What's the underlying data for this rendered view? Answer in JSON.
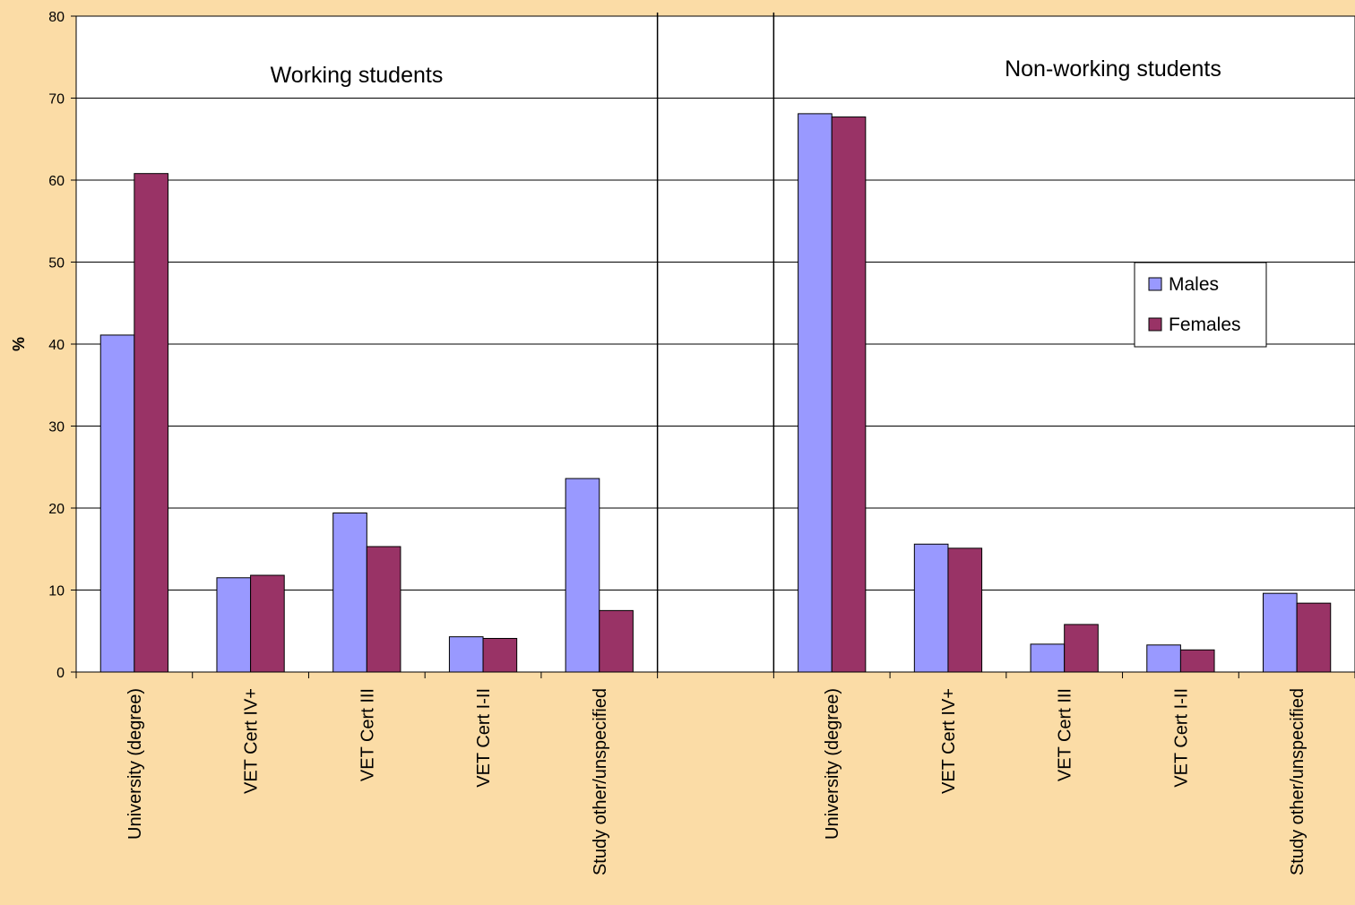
{
  "chart_data": {
    "type": "bar",
    "ylabel": "%",
    "ylim": [
      0,
      80
    ],
    "yticks": [
      0,
      10,
      20,
      30,
      40,
      50,
      60,
      70,
      80
    ],
    "grid": true,
    "legend_position": "right",
    "categories": [
      "University (degree)",
      "VET Cert IV+",
      "VET Cert III",
      "VET Cert I-II",
      "Study other/unspecified",
      "",
      "University (degree)",
      "VET Cert IV+",
      "VET Cert III",
      "VET Cert I-II",
      "Study other/unspecified"
    ],
    "series": [
      {
        "name": "Males",
        "color": "#9999ff",
        "values": [
          41.1,
          11.5,
          19.4,
          4.3,
          23.6,
          null,
          68.1,
          15.6,
          3.4,
          3.3,
          9.6
        ]
      },
      {
        "name": "Females",
        "color": "#993366",
        "values": [
          60.8,
          11.8,
          15.3,
          4.1,
          7.5,
          null,
          67.7,
          15.1,
          5.8,
          2.7,
          8.4
        ]
      }
    ],
    "annotations": [
      "Working students",
      "Non-working students"
    ],
    "background_color": "#fbdca6",
    "plot_color": "#ffffff"
  }
}
